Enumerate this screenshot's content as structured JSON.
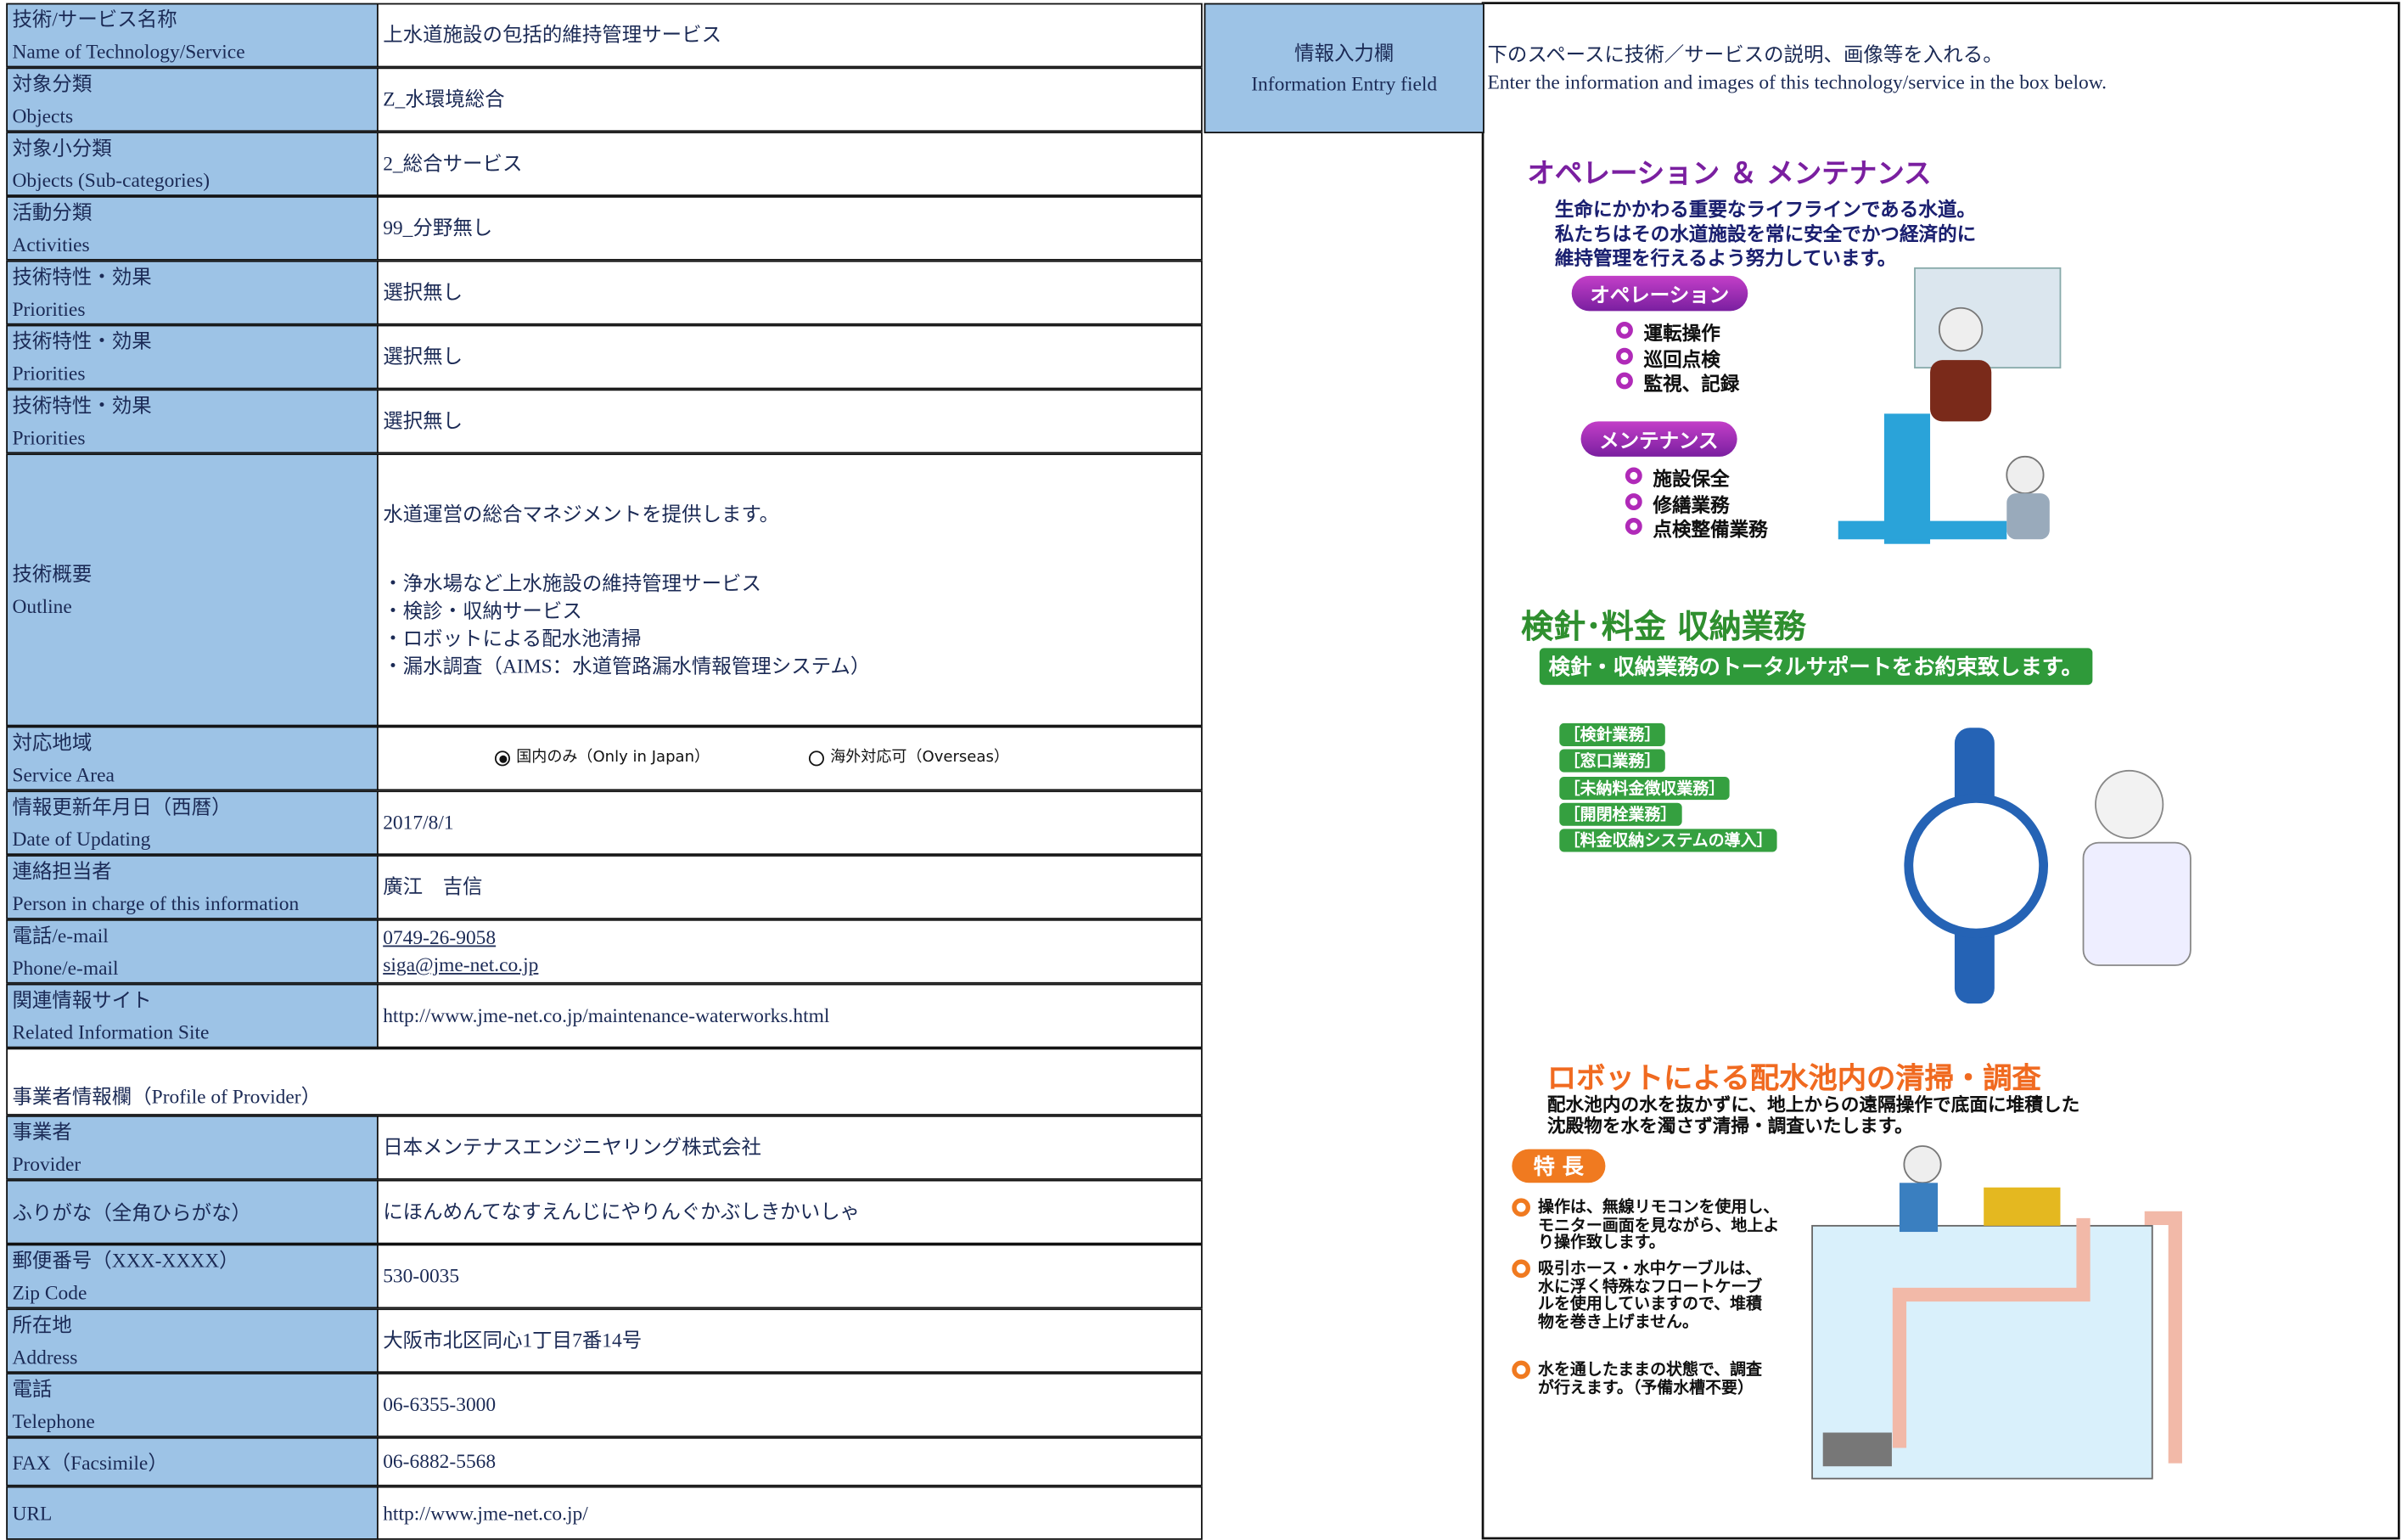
{
  "technology_rows": [
    {
      "label": [
        "技術/サービス名称",
        "Name of Technology/Service"
      ],
      "value": [
        "上水道施設の包括的維持管理サービス"
      ]
    },
    {
      "label": [
        "対象分類",
        "Objects"
      ],
      "value": [
        "Z_水環境総合"
      ]
    },
    {
      "label": [
        "対象小分類",
        "Objects (Sub-categories)"
      ],
      "value": [
        "2_総合サービス"
      ]
    },
    {
      "label": [
        "活動分類",
        "Activities"
      ],
      "value": [
        "99_分野無し"
      ]
    },
    {
      "label": [
        "技術特性・効果",
        "Priorities"
      ],
      "value": [
        "選択無し"
      ]
    },
    {
      "label": [
        "技術特性・効果",
        "Priorities"
      ],
      "value": [
        "選択無し"
      ]
    },
    {
      "label": [
        "技術特性・効果",
        "Priorities"
      ],
      "value": [
        "選択無し"
      ]
    },
    {
      "label": [
        "技術概要",
        "Outline"
      ],
      "value": [
        "水道運営の総合マネジメントを提供します。",
        "・浄水場など上水施設の維持管理サービス",
        "・検診・収納サービス",
        "・ロボットによる配水池清掃",
        "・漏水調査（AIMS：水道管路漏水情報管理システム）"
      ]
    },
    {
      "label": [
        "対応地域",
        "Service Area"
      ],
      "options": [
        "国内のみ（Only in Japan）",
        "海外対応可（Overseas）"
      ],
      "selected_option": 0
    },
    {
      "label": [
        "情報更新年月日（西暦）",
        "Date of Updating"
      ],
      "value": [
        "2017/8/1"
      ]
    },
    {
      "label": [
        "連絡担当者",
        "Person in charge of this information"
      ],
      "value": [
        "廣江　吉信"
      ]
    },
    {
      "label": [
        "電話/e-mail",
        "Phone/e-mail"
      ],
      "links": [
        "0749-26-9058",
        "siga@jme-net.co.jp"
      ]
    },
    {
      "label": [
        "関連情報サイト",
        "Related Information Site"
      ],
      "value": [
        "http://www.jme-net.co.jp/maintenance-waterworks.html"
      ]
    }
  ],
  "provider_section_title": "事業者情報欄（Profile of Provider）",
  "provider_rows": [
    {
      "label": [
        "事業者",
        "Provider"
      ],
      "value": [
        "日本メンテナスエンジニヤリング株式会社"
      ]
    },
    {
      "label": [
        "ふりがな（全角ひらがな）"
      ],
      "value": [
        "にほんめんてなすえんじにやりんぐかぶしきかいしゃ"
      ]
    },
    {
      "label": [
        "郵便番号（XXX-XXXX）",
        "Zip Code"
      ],
      "value": [
        "530-0035"
      ]
    },
    {
      "label": [
        "所在地",
        "Address"
      ],
      "value": [
        "大阪市北区同心1丁目7番14号"
      ]
    },
    {
      "label": [
        "電話",
        "Telephone"
      ],
      "value": [
        "06-6355-3000"
      ]
    },
    {
      "label": [
        "FAX（Facsimile）"
      ],
      "value": [
        "06-6882-5568"
      ]
    },
    {
      "label": [
        "URL"
      ],
      "value": [
        "http://www.jme-net.co.jp/"
      ]
    }
  ],
  "entry_header": [
    "情報入力欄",
    "Information Entry field"
  ],
  "entry_instructions": [
    "下のスペースに技術／サービスの説明、画像等を入れる。",
    "Enter the information and images of this technology/service in the box below."
  ],
  "illustration_operation": {
    "title": "オペレーション ＆ メンテナンス",
    "intro": [
      "生命にかかわる重要なライフラインである水道。",
      "私たちはその水道施設を常に安全でかつ経済的に",
      "維持管理を行えるよう努力しています。"
    ],
    "groups": [
      {
        "heading": "オペレーション",
        "items": [
          "運転操作",
          "巡回点検",
          "監視、記録"
        ]
      },
      {
        "heading": "メンテナンス",
        "items": [
          "施設保全",
          "修繕業務",
          "点検整備業務"
        ]
      }
    ]
  },
  "illustration_billing": {
    "title": "検針･料金 収納業務",
    "banner": "検針・収納業務のトータルサポートをお約束致します。",
    "items": [
      "［検針業務］",
      "［窓口業務］",
      "［未納料金徴収業務］",
      "［開閉栓業務］",
      "［料金収納システムの導入］"
    ]
  },
  "illustration_robot": {
    "title": "ロボットによる配水池内の清掃・調査",
    "intro": [
      "配水池内の水を抜かずに、地上からの遠隔操作で底面に堆積した",
      "沈殿物を水を濁さず清掃・調査いたします。"
    ],
    "badge": "特 長",
    "features": [
      [
        "操作は、無線リモコンを使用し、",
        "モニター画面を見ながら、地上よ",
        "り操作致します。"
      ],
      [
        "吸引ホース・水中ケーブルは、",
        "水に浮く特殊なフロートケーブ",
        "ルを使用していますので、堆積",
        "物を巻き上げません。"
      ],
      [
        "水を通したままの状態で、調査",
        "が行えます。（予備水槽不要）"
      ]
    ]
  }
}
